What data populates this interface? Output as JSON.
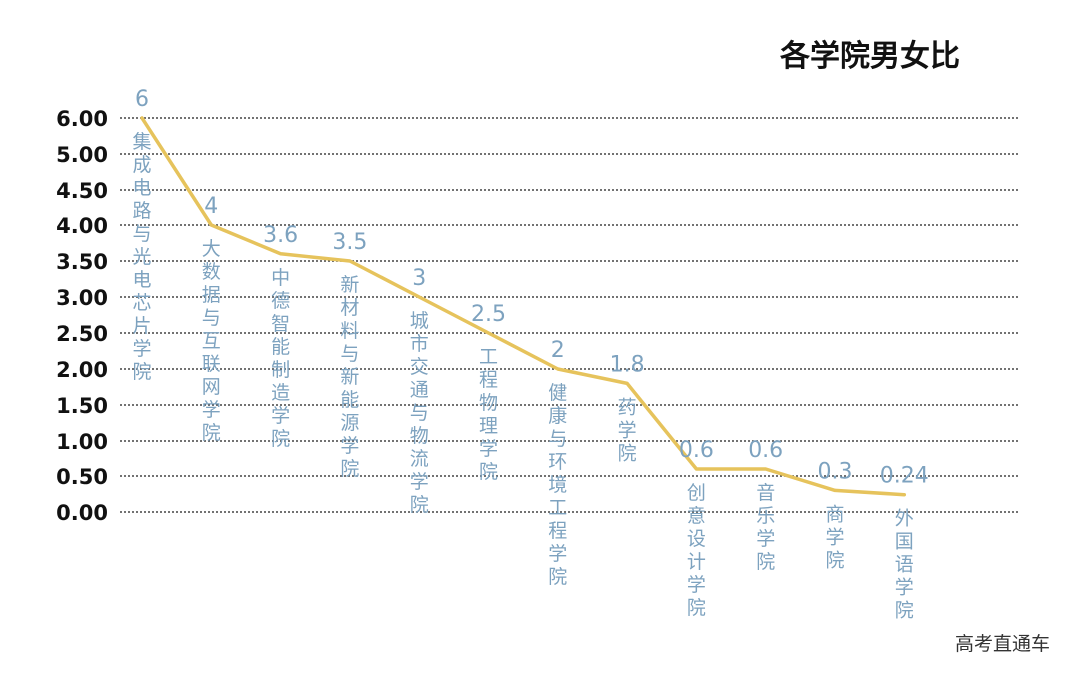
{
  "chart_data": {
    "type": "line",
    "title": "各学院男女比",
    "categories": [
      "集成电路与光电芯片学院",
      "大数据与互联网学院",
      "中德智能制造学院",
      "新材料与新能源学院",
      "城市交通与物流学院",
      "工程物理学院",
      "健康与环境工程学院",
      "药学院",
      "创意设计学院",
      "音乐学院",
      "商学院",
      "外国语学院"
    ],
    "values": [
      6,
      4,
      3.6,
      3.5,
      3,
      2.5,
      2,
      1.8,
      0.6,
      0.6,
      0.3,
      0.24
    ],
    "value_labels": [
      "6",
      "4",
      "3.6",
      "3.5",
      "3",
      "2.5",
      "2",
      "1.8",
      "0.6",
      "0.6",
      "0.3",
      "0.24"
    ],
    "yticks": [
      "0.00",
      "0.50",
      "1.00",
      "1.50",
      "2.00",
      "2.50",
      "3.00",
      "3.50",
      "4.00",
      "4.50",
      "5.00",
      "6.00"
    ],
    "ytick_values": [
      0,
      0.5,
      1,
      1.5,
      2,
      2.5,
      3,
      3.5,
      4,
      4.5,
      5,
      6
    ],
    "xlabel": "",
    "ylabel": "",
    "grid": true,
    "colors": {
      "line": "#e6c35c",
      "labels": "#7da2bf",
      "grid": "#444444",
      "ticks": "#111111"
    }
  },
  "watermark": "高考直通车"
}
